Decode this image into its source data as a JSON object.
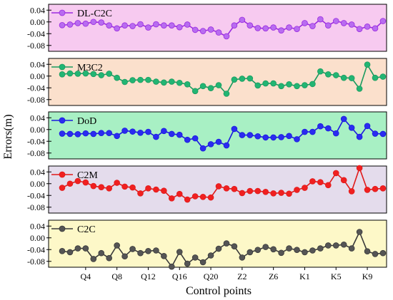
{
  "chart_data": [
    {
      "type": "line",
      "series": [
        {
          "name": "DL-C2C",
          "color": "#9b2be0",
          "marker_fill": "#b86cf0",
          "values": [
            -0.011,
            -0.009,
            -0.004,
            -0.006,
            0.0,
            -0.002,
            -0.012,
            -0.022,
            -0.012,
            -0.014,
            -0.008,
            -0.019,
            -0.008,
            -0.012,
            -0.012,
            -0.018,
            -0.009,
            -0.027,
            -0.031,
            -0.026,
            -0.036,
            -0.049,
            -0.012,
            0.007,
            -0.012,
            -0.021,
            -0.022,
            -0.019,
            -0.029,
            -0.019,
            -0.024,
            -0.004,
            -0.014,
            0.009,
            -0.012,
            0.003,
            -0.004,
            -0.009,
            -0.024,
            -0.016,
            -0.022,
            0.003
          ]
        }
      ],
      "background": "#f7caf0",
      "ylim": [
        -0.1,
        0.06
      ],
      "yticks": [
        "0.04",
        "0.00",
        "-0.04",
        "-0.08"
      ]
    },
    {
      "type": "line",
      "series": [
        {
          "name": "M3C2",
          "color": "#1a9a5e",
          "marker_fill": "#22b573",
          "values": [
            0.006,
            0.009,
            0.008,
            0.009,
            0.007,
            0.003,
            0.008,
            -0.006,
            -0.02,
            -0.014,
            -0.013,
            -0.013,
            -0.019,
            -0.022,
            -0.019,
            -0.023,
            -0.028,
            -0.051,
            -0.034,
            -0.041,
            -0.031,
            -0.06,
            -0.012,
            -0.009,
            -0.008,
            -0.032,
            -0.025,
            -0.025,
            -0.034,
            -0.028,
            -0.034,
            -0.031,
            -0.027,
            0.016,
            0.006,
            0.003,
            -0.006,
            -0.007,
            -0.043,
            0.039,
            -0.006,
            -0.002
          ]
        }
      ],
      "background": "#fbe0cc",
      "ylim": [
        -0.1,
        0.06
      ],
      "yticks": [
        "0.04",
        "0.00",
        "-0.04",
        "-0.08"
      ]
    },
    {
      "type": "line",
      "series": [
        {
          "name": "DoD",
          "color": "#1a1adf",
          "marker_fill": "#2b2bf0",
          "values": [
            -0.014,
            -0.015,
            -0.016,
            -0.013,
            -0.015,
            -0.012,
            -0.012,
            -0.022,
            -0.004,
            -0.007,
            -0.011,
            -0.008,
            -0.025,
            -0.005,
            -0.015,
            -0.018,
            -0.035,
            -0.03,
            -0.064,
            -0.05,
            -0.042,
            -0.054,
            0.002,
            -0.019,
            -0.019,
            -0.023,
            -0.027,
            -0.027,
            -0.026,
            -0.022,
            -0.033,
            -0.008,
            -0.008,
            0.011,
            0.004,
            -0.013,
            0.036,
            0.006,
            -0.025,
            0.012,
            -0.014,
            -0.015
          ]
        }
      ],
      "background": "#a8f0c4",
      "ylim": [
        -0.1,
        0.06
      ],
      "yticks": [
        "0.04",
        "0.00",
        "-0.04",
        "-0.08"
      ]
    },
    {
      "type": "line",
      "series": [
        {
          "name": "C2M",
          "color": "#e01a1a",
          "marker_fill": "#f02020",
          "values": [
            -0.014,
            0.0,
            0.009,
            0.004,
            -0.008,
            -0.012,
            -0.016,
            0.003,
            -0.01,
            -0.013,
            -0.033,
            -0.016,
            -0.02,
            -0.024,
            -0.05,
            -0.035,
            -0.054,
            -0.043,
            -0.045,
            -0.047,
            -0.009,
            -0.016,
            -0.018,
            -0.032,
            -0.025,
            -0.025,
            -0.028,
            -0.033,
            -0.031,
            -0.034,
            -0.021,
            -0.014,
            0.008,
            0.005,
            -0.005,
            0.036,
            0.012,
            -0.026,
            0.053,
            -0.021,
            -0.018,
            -0.016
          ]
        }
      ],
      "background": "#e4dcec",
      "ylim": [
        -0.1,
        0.06
      ],
      "yticks": [
        "0.04",
        "0.00",
        "-0.04",
        "-0.08"
      ]
    },
    {
      "type": "line",
      "series": [
        {
          "name": "C2C",
          "color": "#3a3a3a",
          "marker_fill": "#555555",
          "values": [
            -0.045,
            -0.049,
            -0.036,
            -0.036,
            -0.072,
            -0.052,
            -0.069,
            -0.026,
            -0.063,
            -0.038,
            -0.052,
            -0.045,
            -0.043,
            -0.062,
            -0.098,
            -0.048,
            -0.088,
            -0.067,
            -0.083,
            -0.06,
            -0.037,
            -0.019,
            -0.029,
            -0.067,
            -0.049,
            -0.041,
            -0.031,
            -0.039,
            -0.051,
            -0.036,
            -0.041,
            -0.049,
            -0.043,
            -0.036,
            -0.026,
            -0.026,
            -0.023,
            -0.036,
            0.02,
            -0.046,
            -0.055,
            -0.052
          ]
        }
      ],
      "background": "#fdf8c8",
      "ylim": [
        -0.1,
        0.06
      ],
      "yticks": [
        "0.04",
        "0.00",
        "-0.04",
        "-0.08"
      ]
    }
  ],
  "x_tick_labels": [
    "Q4",
    "Q8",
    "Q12",
    "Q16",
    "Q20",
    "Z2",
    "Z6",
    "K1",
    "K5",
    "K9"
  ],
  "xlabel": "Control points",
  "ylabel": "Errors(m)"
}
